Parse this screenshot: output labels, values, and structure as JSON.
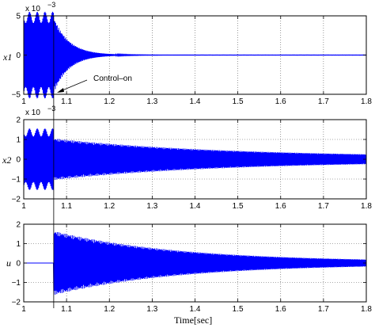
{
  "chart_data": [
    {
      "type": "line",
      "ylabel": "x1",
      "xlim": [
        1,
        1.8
      ],
      "ylim": [
        -5,
        5
      ],
      "yticks": [
        -5,
        0,
        5
      ],
      "ytick_labels": [
        "−5",
        "0",
        "5"
      ],
      "xticks": [
        1,
        1.1,
        1.2,
        1.3,
        1.4,
        1.5,
        1.6,
        1.7,
        1.8
      ],
      "xtick_labels": [
        "1",
        "1.1",
        "1.2",
        "1.3",
        "1.4",
        "1.5",
        "1.6",
        "1.7",
        "1.8"
      ],
      "scale_label": "x 10",
      "scale_exp": "−3",
      "grid": true,
      "annotation": {
        "text": "Control–on",
        "x": 1.07
      },
      "series": [
        {
          "color": "#0000ff",
          "envelope": {
            "pre_amplitude": 4.8,
            "switch_time": 1.07,
            "decay_rate": 28,
            "floor": 0.02
          }
        }
      ]
    },
    {
      "type": "line",
      "ylabel": "x2",
      "xlim": [
        1,
        1.8
      ],
      "ylim": [
        -2,
        2
      ],
      "yticks": [
        -2,
        -1,
        0,
        1,
        2
      ],
      "ytick_labels": [
        "−2",
        "−1",
        "0",
        "1",
        "2"
      ],
      "xticks": [
        1,
        1.1,
        1.2,
        1.3,
        1.4,
        1.5,
        1.6,
        1.7,
        1.8
      ],
      "xtick_labels": [
        "1",
        "1.1",
        "1.2",
        "1.3",
        "1.4",
        "1.5",
        "1.6",
        "1.7",
        "1.8"
      ],
      "scale_label": "x 10",
      "scale_exp": "−3",
      "grid": true,
      "series": [
        {
          "color": "#0000ff",
          "envelope": {
            "pre_amplitude": 1.35,
            "switch_time": 1.07,
            "post_amplitude": 0.95,
            "decay_rate": 2.5,
            "floor": 0.1
          }
        }
      ]
    },
    {
      "type": "line",
      "ylabel": "u",
      "xlabel": "Time[sec]",
      "xlim": [
        1,
        1.8
      ],
      "ylim": [
        -2,
        2
      ],
      "yticks": [
        -2,
        -1,
        0,
        1,
        2
      ],
      "ytick_labels": [
        "−2",
        "−1",
        "0",
        "1",
        "2"
      ],
      "xticks": [
        1,
        1.1,
        1.2,
        1.3,
        1.4,
        1.5,
        1.6,
        1.7,
        1.8
      ],
      "xtick_labels": [
        "1",
        "1.1",
        "1.2",
        "1.3",
        "1.4",
        "1.5",
        "1.6",
        "1.7",
        "1.8"
      ],
      "grid": true,
      "series": [
        {
          "color": "#0000ff",
          "envelope": {
            "pre_amplitude": 0,
            "switch_time": 1.07,
            "post_amplitude": 1.6,
            "decay_rate": 3.4,
            "floor": 0.05
          }
        }
      ]
    }
  ]
}
